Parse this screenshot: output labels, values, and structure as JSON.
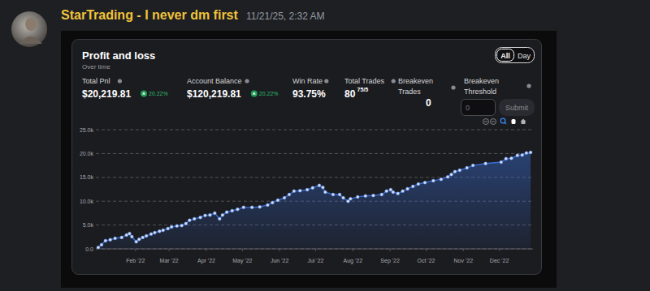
{
  "message": {
    "username": "StarTrading - I never dm first",
    "timestamp": "11/21/25, 2:32 AM"
  },
  "dashboard": {
    "toggle": [
      "All",
      "Day"
    ],
    "stats": [
      {
        "label": "Total Pnl",
        "value": "$20,219.81",
        "change": "20.22%"
      },
      {
        "label": "Account Balance",
        "value": "$120,219.81",
        "change": "20.22%"
      },
      {
        "label": "Win Rate",
        "value": "93.75%"
      },
      {
        "label": "Total Trades",
        "value": "80",
        "detail": "75/5"
      },
      {
        "label": "Breakeven Trades",
        "value": "0"
      }
    ],
    "threshold": {
      "label": "Breakeven Threshold",
      "placeholder": "0",
      "button": "Submit"
    }
  },
  "chart_data": {
    "type": "area",
    "title": "Profit and loss",
    "subtitle": "Over time",
    "color": "#3a6fd8",
    "marker": "circle",
    "grid": true,
    "x": [
      0,
      2.7,
      6,
      10,
      14,
      19.5,
      23.5,
      26,
      28,
      31.6,
      34,
      37,
      40,
      44,
      47,
      51,
      54,
      58,
      61,
      65.5,
      69.5,
      73,
      76,
      80,
      85,
      89,
      93,
      97,
      101,
      103.5,
      107,
      111.5,
      116,
      121,
      128,
      134.5,
      141,
      145,
      149.5,
      155,
      159,
      163,
      168,
      174,
      178.5,
      184,
      187,
      189,
      195.5,
      201,
      204,
      208,
      210,
      216,
      222.5,
      229,
      236,
      240,
      243.5,
      245.5,
      249.5,
      253.5,
      257.5,
      262,
      266.5,
      272,
      279,
      285.5,
      291,
      294,
      297,
      301,
      307,
      312,
      322.5,
      335.5,
      339.5,
      344,
      349,
      353,
      356.5,
      360
    ],
    "values": [
      300,
      850,
      1700,
      1900,
      2200,
      2400,
      2900,
      3200,
      2550,
      1500,
      2000,
      2400,
      2700,
      3100,
      3400,
      3700,
      3900,
      4250,
      4600,
      4800,
      4900,
      5300,
      6000,
      6300,
      6600,
      7000,
      7100,
      7500,
      6300,
      7100,
      7700,
      8000,
      8300,
      8700,
      8700,
      8800,
      9200,
      9700,
      10200,
      10700,
      11400,
      12100,
      12200,
      12400,
      12800,
      13300,
      12900,
      11900,
      11400,
      11400,
      10700,
      10000,
      10500,
      10900,
      11100,
      11200,
      11400,
      12100,
      12400,
      11900,
      11600,
      12100,
      12600,
      13100,
      13600,
      13900,
      14300,
      14600,
      15100,
      15600,
      16200,
      16500,
      17000,
      17500,
      17900,
      18200,
      18900,
      19000,
      19600,
      19700,
      20100,
      20219.81
    ],
    "xlim": [
      -2,
      362
    ],
    "ylim": [
      0,
      25000
    ],
    "xticks": [
      {
        "value": 31,
        "label": "Feb '22"
      },
      {
        "value": 59,
        "label": "Mar '22"
      },
      {
        "value": 90,
        "label": "Apr '22"
      },
      {
        "value": 120,
        "label": "May '22"
      },
      {
        "value": 151,
        "label": "Jun '22"
      },
      {
        "value": 181,
        "label": "Jul '22"
      },
      {
        "value": 212,
        "label": "Aug '22"
      },
      {
        "value": 243,
        "label": "Sep '22"
      },
      {
        "value": 273,
        "label": "Oct '22"
      },
      {
        "value": 304,
        "label": "Nov '22"
      },
      {
        "value": 334,
        "label": "Dec '22"
      }
    ],
    "yticks": [
      {
        "value": 0,
        "label": "0.0"
      },
      {
        "value": 5000,
        "label": "5.0k"
      },
      {
        "value": 10000,
        "label": "10.0k"
      },
      {
        "value": 15000,
        "label": "15.0k"
      },
      {
        "value": 20000,
        "label": "20.0k"
      },
      {
        "value": 25000,
        "label": "25.0k"
      }
    ]
  }
}
